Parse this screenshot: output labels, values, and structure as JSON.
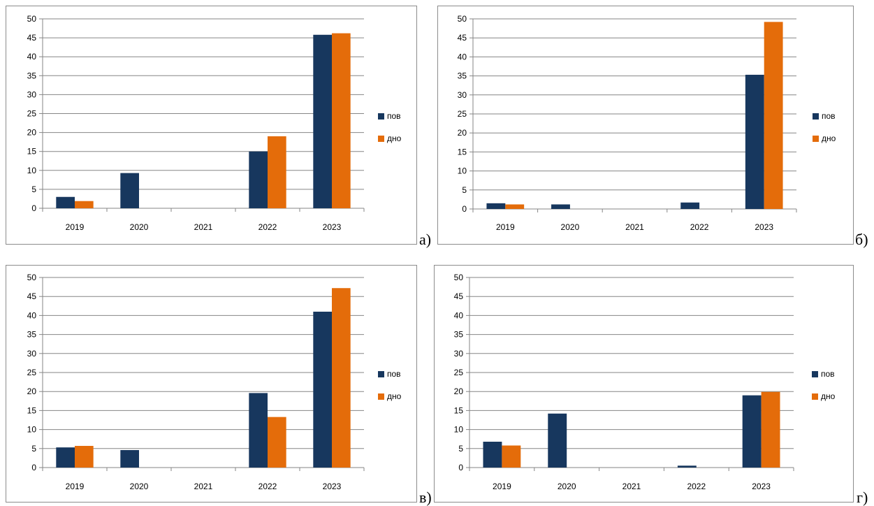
{
  "colors": {
    "pov": "#17375e",
    "dno": "#e46c0a",
    "grid": "#868686",
    "axis": "#868686"
  },
  "chart_data": [
    {
      "type": "bar",
      "panel": "а)",
      "categories": [
        "2019",
        "2020",
        "2021",
        "2022",
        "2023"
      ],
      "ylim": [
        0,
        50
      ],
      "yticks": [
        "0",
        "5",
        "10",
        "15",
        "20",
        "25",
        "30",
        "35",
        "40",
        "45",
        "50"
      ],
      "grid": true,
      "legend_position": "right",
      "series": [
        {
          "name": "пов",
          "values": [
            3.0,
            9.3,
            0,
            15.0,
            45.8
          ]
        },
        {
          "name": "дно",
          "values": [
            1.9,
            0,
            0,
            19.0,
            46.2
          ]
        }
      ]
    },
    {
      "type": "bar",
      "panel": "б)",
      "categories": [
        "2019",
        "2020",
        "2021",
        "2022",
        "2023"
      ],
      "ylim": [
        0,
        50
      ],
      "yticks": [
        "0",
        "5",
        "10",
        "15",
        "20",
        "25",
        "30",
        "35",
        "40",
        "45",
        "50"
      ],
      "grid": true,
      "legend_position": "right",
      "series": [
        {
          "name": "пов",
          "values": [
            1.5,
            1.2,
            0,
            1.7,
            35.3
          ]
        },
        {
          "name": "дно",
          "values": [
            1.2,
            0,
            0,
            0,
            49.2
          ]
        }
      ]
    },
    {
      "type": "bar",
      "panel": "в)",
      "categories": [
        "2019",
        "2020",
        "2021",
        "2022",
        "2023"
      ],
      "ylim": [
        0,
        50
      ],
      "yticks": [
        "0",
        "5",
        "10",
        "15",
        "20",
        "25",
        "30",
        "35",
        "40",
        "45",
        "50"
      ],
      "grid": true,
      "legend_position": "right",
      "series": [
        {
          "name": "пов",
          "values": [
            5.3,
            4.6,
            0,
            19.6,
            41.0
          ]
        },
        {
          "name": "дно",
          "values": [
            5.7,
            0,
            0,
            13.3,
            47.2
          ]
        }
      ]
    },
    {
      "type": "bar",
      "panel": "г)",
      "categories": [
        "2019",
        "2020",
        "2021",
        "2022",
        "2023"
      ],
      "ylim": [
        0,
        50
      ],
      "yticks": [
        "0",
        "5",
        "10",
        "15",
        "20",
        "25",
        "30",
        "35",
        "40",
        "45",
        "50"
      ],
      "grid": true,
      "legend_position": "right",
      "series": [
        {
          "name": "пов",
          "values": [
            6.8,
            14.2,
            0,
            0.5,
            19.0
          ]
        },
        {
          "name": "дно",
          "values": [
            5.8,
            0,
            0,
            0,
            19.9
          ]
        }
      ]
    }
  ]
}
